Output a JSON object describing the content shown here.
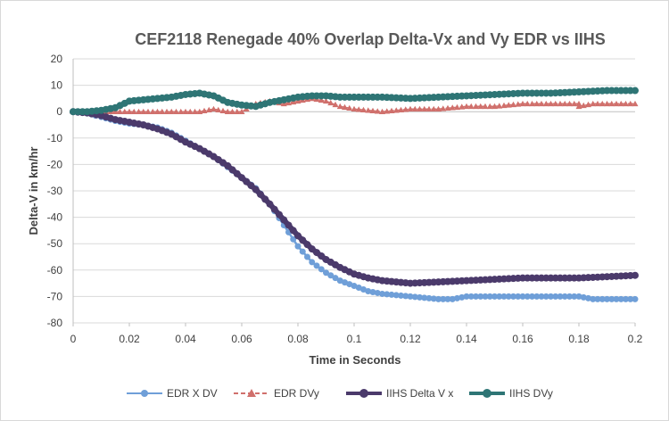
{
  "colors": {
    "edr_x": "#6f9fd8",
    "edr_y": "#d0706c",
    "iihs_x": "#4b3a6b",
    "iihs_y": "#2e7575",
    "grid": "#d9d9d9",
    "axis": "#bfbfbf"
  },
  "chart_data": {
    "type": "line",
    "title": "CEF2118 Renegade 40% Overlap Delta-Vx and Vy EDR vs IIHS",
    "xlabel": "Time in Seconds",
    "ylabel": "Delta-V in km/hr",
    "xlim": [
      0,
      0.2
    ],
    "ylim": [
      -80,
      20
    ],
    "x_ticks": [
      "0",
      "0.02",
      "0.04",
      "0.06",
      "0.08",
      "0.1",
      "0.12",
      "0.14",
      "0.16",
      "0.18",
      "0.2"
    ],
    "y_ticks": [
      "20",
      "10",
      "0",
      "-10",
      "-20",
      "-30",
      "-40",
      "-50",
      "-60",
      "-70",
      "-80"
    ],
    "grid": "horizontal",
    "legend_position": "bottom",
    "series": [
      {
        "name": "EDR X DV",
        "marker": "circle",
        "points": [
          [
            0,
            0
          ],
          [
            0.005,
            -0.5
          ],
          [
            0.008,
            -1.5
          ],
          [
            0.01,
            -2
          ],
          [
            0.015,
            -3.5
          ],
          [
            0.02,
            -4.5
          ],
          [
            0.025,
            -5
          ],
          [
            0.03,
            -6
          ],
          [
            0.035,
            -8
          ],
          [
            0.04,
            -11
          ],
          [
            0.045,
            -14
          ],
          [
            0.05,
            -17
          ],
          [
            0.055,
            -21
          ],
          [
            0.06,
            -25
          ],
          [
            0.065,
            -29
          ],
          [
            0.07,
            -35
          ],
          [
            0.075,
            -43
          ],
          [
            0.08,
            -51
          ],
          [
            0.085,
            -57
          ],
          [
            0.09,
            -61
          ],
          [
            0.095,
            -64
          ],
          [
            0.1,
            -66
          ],
          [
            0.105,
            -68
          ],
          [
            0.11,
            -69
          ],
          [
            0.115,
            -69.5
          ],
          [
            0.12,
            -70
          ],
          [
            0.125,
            -70.5
          ],
          [
            0.13,
            -71
          ],
          [
            0.135,
            -71
          ],
          [
            0.14,
            -70
          ],
          [
            0.15,
            -70
          ],
          [
            0.16,
            -70
          ],
          [
            0.17,
            -70
          ],
          [
            0.18,
            -70
          ],
          [
            0.185,
            -71
          ],
          [
            0.19,
            -71
          ],
          [
            0.2,
            -71
          ]
        ]
      },
      {
        "name": "EDR DVy",
        "marker": "triangle",
        "points": [
          [
            0,
            0
          ],
          [
            0.005,
            0
          ],
          [
            0.01,
            0
          ],
          [
            0.015,
            0
          ],
          [
            0.02,
            0
          ],
          [
            0.03,
            0
          ],
          [
            0.04,
            0
          ],
          [
            0.045,
            0
          ],
          [
            0.05,
            1
          ],
          [
            0.055,
            0
          ],
          [
            0.06,
            0
          ],
          [
            0.065,
            3
          ],
          [
            0.07,
            4
          ],
          [
            0.075,
            3
          ],
          [
            0.08,
            4
          ],
          [
            0.085,
            5
          ],
          [
            0.09,
            4
          ],
          [
            0.095,
            2
          ],
          [
            0.1,
            1
          ],
          [
            0.11,
            0
          ],
          [
            0.12,
            1
          ],
          [
            0.13,
            1
          ],
          [
            0.14,
            2
          ],
          [
            0.15,
            2
          ],
          [
            0.16,
            3
          ],
          [
            0.17,
            3
          ],
          [
            0.18,
            3
          ],
          [
            0.18,
            2
          ],
          [
            0.185,
            3
          ],
          [
            0.19,
            3
          ],
          [
            0.2,
            3
          ]
        ]
      },
      {
        "name": "IIHS Delta V x",
        "marker": "circle",
        "points": [
          [
            0,
            0
          ],
          [
            0.005,
            -0.5
          ],
          [
            0.01,
            -1.5
          ],
          [
            0.015,
            -3
          ],
          [
            0.02,
            -4
          ],
          [
            0.025,
            -5
          ],
          [
            0.03,
            -6.5
          ],
          [
            0.035,
            -8.5
          ],
          [
            0.04,
            -11.5
          ],
          [
            0.045,
            -14
          ],
          [
            0.05,
            -17
          ],
          [
            0.055,
            -20.5
          ],
          [
            0.06,
            -25
          ],
          [
            0.065,
            -29.5
          ],
          [
            0.07,
            -35
          ],
          [
            0.075,
            -41
          ],
          [
            0.08,
            -47
          ],
          [
            0.085,
            -52
          ],
          [
            0.09,
            -56
          ],
          [
            0.095,
            -59
          ],
          [
            0.1,
            -61.5
          ],
          [
            0.105,
            -63
          ],
          [
            0.11,
            -64
          ],
          [
            0.115,
            -64.5
          ],
          [
            0.12,
            -65
          ],
          [
            0.13,
            -64.5
          ],
          [
            0.14,
            -64
          ],
          [
            0.15,
            -63.5
          ],
          [
            0.16,
            -63
          ],
          [
            0.17,
            -63
          ],
          [
            0.18,
            -63
          ],
          [
            0.19,
            -62.5
          ],
          [
            0.2,
            -62
          ]
        ]
      },
      {
        "name": "IIHS DVy",
        "marker": "circle",
        "points": [
          [
            0,
            0
          ],
          [
            0.005,
            0
          ],
          [
            0.01,
            0.5
          ],
          [
            0.015,
            1.5
          ],
          [
            0.02,
            4
          ],
          [
            0.025,
            4.5
          ],
          [
            0.03,
            5
          ],
          [
            0.035,
            5.5
          ],
          [
            0.04,
            6.5
          ],
          [
            0.045,
            7
          ],
          [
            0.05,
            6
          ],
          [
            0.055,
            3.5
          ],
          [
            0.06,
            2.5
          ],
          [
            0.065,
            2
          ],
          [
            0.07,
            3.5
          ],
          [
            0.075,
            4.5
          ],
          [
            0.08,
            5.5
          ],
          [
            0.085,
            6
          ],
          [
            0.09,
            6
          ],
          [
            0.095,
            5.5
          ],
          [
            0.1,
            5.5
          ],
          [
            0.11,
            5.5
          ],
          [
            0.12,
            5
          ],
          [
            0.13,
            5.5
          ],
          [
            0.14,
            6
          ],
          [
            0.15,
            6.5
          ],
          [
            0.16,
            7
          ],
          [
            0.17,
            7
          ],
          [
            0.18,
            7.5
          ],
          [
            0.19,
            8
          ],
          [
            0.2,
            8
          ]
        ]
      }
    ]
  }
}
